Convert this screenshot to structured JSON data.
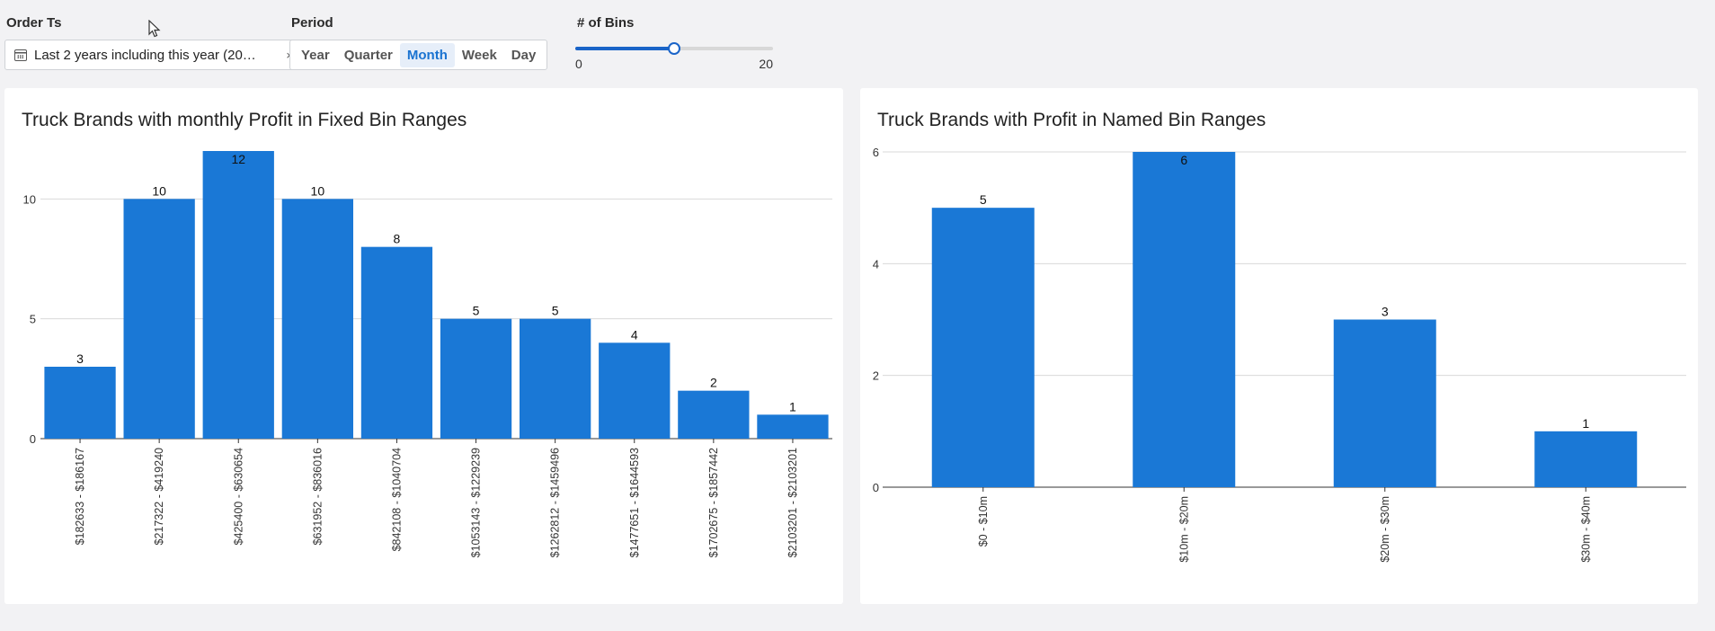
{
  "controls": {
    "order_ts": {
      "label": "Order Ts",
      "value": "Last 2 years including this year (20…",
      "icon": "calendar-icon",
      "clear": "×"
    },
    "period": {
      "label": "Period",
      "options": [
        "Year",
        "Quarter",
        "Month",
        "Week",
        "Day"
      ],
      "selected": "Month"
    },
    "bins": {
      "label": "# of Bins",
      "min": "0",
      "max": "20",
      "value": 10
    }
  },
  "colors": {
    "bar": "#1a78d6",
    "accent": "#1a64c8",
    "grid": "#d9d9d9",
    "axis": "#333333"
  },
  "chart_data": [
    {
      "type": "bar",
      "title": "Truck Brands with monthly Profit in Fixed Bin Ranges",
      "xlabel": "",
      "ylabel": "",
      "categories": [
        "$182633 - $186167",
        "$217322 - $419240",
        "$425400 - $630654",
        "$631952 - $836016",
        "$842108 - $1040704",
        "$1053143 - $1229239",
        "$1262812 - $1459496",
        "$1477651 - $1644593",
        "$1702675 - $1857442",
        "$2103201 - $2103201"
      ],
      "values": [
        3,
        10,
        12,
        10,
        8,
        5,
        5,
        4,
        2,
        1
      ],
      "ylim": [
        0,
        12
      ],
      "yticks": [
        "0",
        "5",
        "10"
      ],
      "grid": true,
      "legend": "none"
    },
    {
      "type": "bar",
      "title": "Truck Brands with Profit in Named Bin Ranges",
      "xlabel": "",
      "ylabel": "",
      "categories": [
        "$0 - $10m",
        "$10m - $20m",
        "$20m - $30m",
        "$30m - $40m"
      ],
      "values": [
        5,
        6,
        3,
        1
      ],
      "ylim": [
        0,
        6
      ],
      "yticks": [
        "0",
        "2",
        "4",
        "6"
      ],
      "grid": true,
      "legend": "none"
    }
  ]
}
